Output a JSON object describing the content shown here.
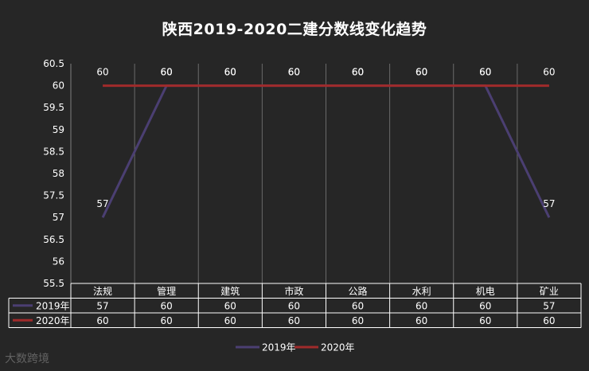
{
  "chart_data": {
    "type": "line",
    "title": "陕西2019-2020二建分数线变化趋势",
    "categories": [
      "法规",
      "管理",
      "建筑",
      "市政",
      "公路",
      "水利",
      "机电",
      "矿业"
    ],
    "series": [
      {
        "name": "2019年",
        "color": "#4b3f72",
        "values": [
          57,
          60,
          60,
          60,
          60,
          60,
          60,
          57
        ]
      },
      {
        "name": "2020年",
        "color": "#a02b2b",
        "values": [
          60,
          60,
          60,
          60,
          60,
          60,
          60,
          60
        ]
      }
    ],
    "ylim": [
      55.5,
      60.5
    ],
    "yticks": [
      "60.5",
      "60",
      "59.5",
      "59",
      "58.5",
      "58",
      "57.5",
      "57",
      "56.5",
      "56",
      "55.5"
    ],
    "data_labels": true,
    "data_table": true,
    "legend_position": "bottom"
  },
  "watermark": "大数跨境"
}
